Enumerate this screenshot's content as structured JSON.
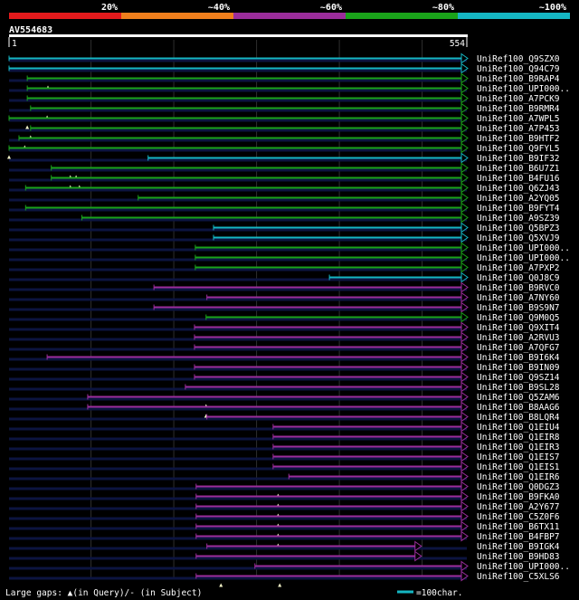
{
  "chart_data": {
    "type": "blast-alignment-overview",
    "query_id": "AV554683",
    "query_start": 1,
    "query_end": 554,
    "identity_scale": [
      {
        "label": "20%",
        "color": "#e41a1c"
      },
      {
        "label": "~40%",
        "color": "#f07f1c"
      },
      {
        "label": "~60%",
        "color": "#9b2d9b"
      },
      {
        "label": "~80%",
        "color": "#1aa31a"
      },
      {
        "label": "~100%",
        "color": "#15b6c2"
      }
    ],
    "hits": [
      {
        "name": "UniRef100_Q9SZX0",
        "start": 1,
        "end": 554,
        "color": "#15b6c2",
        "gaps": []
      },
      {
        "name": "UniRef100_Q94C79",
        "start": 1,
        "end": 554,
        "color": "#15b6c2",
        "gaps": []
      },
      {
        "name": "UniRef100_B9RAP4",
        "start": 23,
        "end": 554,
        "color": "#1aa31a",
        "gaps": [
          48
        ]
      },
      {
        "name": "UniRef100_UPI000..",
        "start": 23,
        "end": 554,
        "color": "#1aa31a",
        "gaps": []
      },
      {
        "name": "UniRef100_A7PCK9",
        "start": 23,
        "end": 554,
        "color": "#1aa31a",
        "gaps": []
      },
      {
        "name": "UniRef100_B9RMR4",
        "start": 27,
        "end": 554,
        "color": "#1aa31a",
        "gaps": [
          47
        ]
      },
      {
        "name": "UniRef100_A7WPL5",
        "start": 1,
        "end": 554,
        "color": "#1aa31a",
        "gaps": [
          23
        ]
      },
      {
        "name": "UniRef100_A7P453",
        "start": 27,
        "end": 554,
        "color": "#1aa31a",
        "gaps": [
          27
        ]
      },
      {
        "name": "UniRef100_B9HTF2",
        "start": 13,
        "end": 554,
        "color": "#1aa31a",
        "gaps": [
          20
        ]
      },
      {
        "name": "UniRef100_Q9FYL5",
        "start": 1,
        "end": 554,
        "color": "#1aa31a",
        "gaps": [
          1
        ]
      },
      {
        "name": "UniRef100_B9IF32",
        "start": 169,
        "end": 554,
        "color": "#15b6c2",
        "gaps": []
      },
      {
        "name": "UniRef100_B6U7Z1",
        "start": 52,
        "end": 554,
        "color": "#1aa31a",
        "gaps": [
          75,
          82
        ]
      },
      {
        "name": "UniRef100_B4FU16",
        "start": 52,
        "end": 554,
        "color": "#1aa31a",
        "gaps": [
          75,
          86
        ]
      },
      {
        "name": "UniRef100_Q6ZJ43",
        "start": 21,
        "end": 554,
        "color": "#1aa31a",
        "gaps": []
      },
      {
        "name": "UniRef100_A2YQ05",
        "start": 157,
        "end": 554,
        "color": "#1aa31a",
        "gaps": []
      },
      {
        "name": "UniRef100_B9FYT4",
        "start": 21,
        "end": 554,
        "color": "#1aa31a",
        "gaps": []
      },
      {
        "name": "UniRef100_A9SZ39",
        "start": 89,
        "end": 554,
        "color": "#1aa31a",
        "gaps": []
      },
      {
        "name": "UniRef100_Q5BPZ3",
        "start": 248,
        "end": 554,
        "color": "#15b6c2",
        "gaps": []
      },
      {
        "name": "UniRef100_Q5XVJ9",
        "start": 248,
        "end": 554,
        "color": "#15b6c2",
        "gaps": []
      },
      {
        "name": "UniRef100_UPI000..",
        "start": 226,
        "end": 554,
        "color": "#1aa31a",
        "gaps": []
      },
      {
        "name": "UniRef100_UPI000..",
        "start": 226,
        "end": 554,
        "color": "#1aa31a",
        "gaps": []
      },
      {
        "name": "UniRef100_A7PXP2",
        "start": 226,
        "end": 554,
        "color": "#1aa31a",
        "gaps": []
      },
      {
        "name": "UniRef100_Q0J8C9",
        "start": 388,
        "end": 554,
        "color": "#15b6c2",
        "gaps": []
      },
      {
        "name": "UniRef100_B9RVC0",
        "start": 176,
        "end": 554,
        "color": "#9b2d9b",
        "gaps": []
      },
      {
        "name": "UniRef100_A7NY60",
        "start": 240,
        "end": 554,
        "color": "#9b2d9b",
        "gaps": []
      },
      {
        "name": "UniRef100_B9S9N7",
        "start": 176,
        "end": 554,
        "color": "#9b2d9b",
        "gaps": []
      },
      {
        "name": "UniRef100_Q9M0Q5",
        "start": 239,
        "end": 554,
        "color": "#1aa31a",
        "gaps": []
      },
      {
        "name": "UniRef100_Q9XIT4",
        "start": 225,
        "end": 554,
        "color": "#9b2d9b",
        "gaps": []
      },
      {
        "name": "UniRef100_A2RVU3",
        "start": 225,
        "end": 554,
        "color": "#9b2d9b",
        "gaps": []
      },
      {
        "name": "UniRef100_A7QFG7",
        "start": 225,
        "end": 554,
        "color": "#9b2d9b",
        "gaps": []
      },
      {
        "name": "UniRef100_B9I6K4",
        "start": 47,
        "end": 554,
        "color": "#9b2d9b",
        "gaps": []
      },
      {
        "name": "UniRef100_B9IN09",
        "start": 225,
        "end": 554,
        "color": "#9b2d9b",
        "gaps": []
      },
      {
        "name": "UniRef100_Q9SZ14",
        "start": 225,
        "end": 554,
        "color": "#9b2d9b",
        "gaps": []
      },
      {
        "name": "UniRef100_B9SL28",
        "start": 214,
        "end": 554,
        "color": "#9b2d9b",
        "gaps": []
      },
      {
        "name": "UniRef100_Q5ZAM6",
        "start": 96,
        "end": 554,
        "color": "#9b2d9b",
        "gaps": [
          239
        ]
      },
      {
        "name": "UniRef100_B8AAG6",
        "start": 96,
        "end": 554,
        "color": "#9b2d9b",
        "gaps": [
          239
        ]
      },
      {
        "name": "UniRef100_B8LQR4",
        "start": 240,
        "end": 554,
        "color": "#9b2d9b",
        "gaps": []
      },
      {
        "name": "UniRef100_Q1EIU4",
        "start": 320,
        "end": 554,
        "color": "#9b2d9b",
        "gaps": []
      },
      {
        "name": "UniRef100_Q1EIR8",
        "start": 320,
        "end": 554,
        "color": "#9b2d9b",
        "gaps": []
      },
      {
        "name": "UniRef100_Q1EIR3",
        "start": 320,
        "end": 554,
        "color": "#9b2d9b",
        "gaps": []
      },
      {
        "name": "UniRef100_Q1EIS7",
        "start": 320,
        "end": 554,
        "color": "#9b2d9b",
        "gaps": []
      },
      {
        "name": "UniRef100_Q1EIS1",
        "start": 320,
        "end": 554,
        "color": "#9b2d9b",
        "gaps": []
      },
      {
        "name": "UniRef100_Q1EIR6",
        "start": 339,
        "end": 554,
        "color": "#9b2d9b",
        "gaps": []
      },
      {
        "name": "UniRef100_Q0DGZ3",
        "start": 227,
        "end": 554,
        "color": "#9b2d9b",
        "gaps": [
          326
        ]
      },
      {
        "name": "UniRef100_B9FKA0",
        "start": 227,
        "end": 554,
        "color": "#9b2d9b",
        "gaps": [
          326
        ]
      },
      {
        "name": "UniRef100_A2Y677",
        "start": 227,
        "end": 554,
        "color": "#9b2d9b",
        "gaps": [
          326
        ]
      },
      {
        "name": "UniRef100_C5Z0F6",
        "start": 227,
        "end": 554,
        "color": "#9b2d9b",
        "gaps": [
          326
        ]
      },
      {
        "name": "UniRef100_B6TX11",
        "start": 227,
        "end": 554,
        "color": "#9b2d9b",
        "gaps": [
          326
        ]
      },
      {
        "name": "UniRef100_B4FBP7",
        "start": 227,
        "end": 554,
        "color": "#9b2d9b",
        "gaps": [
          326
        ]
      },
      {
        "name": "UniRef100_B9IGK4",
        "start": 240,
        "end": 498,
        "color": "#9b2d9b",
        "gaps": []
      },
      {
        "name": "UniRef100_B9HD83",
        "start": 227,
        "end": 498,
        "color": "#9b2d9b",
        "gaps": []
      },
      {
        "name": "UniRef100_UPI000..",
        "start": 298,
        "end": 554,
        "color": "#9b2d9b",
        "gaps": []
      },
      {
        "name": "UniRef100_C5XLS6",
        "start": 227,
        "end": 554,
        "color": "#9b2d9b",
        "gaps": [
          257,
          328
        ]
      }
    ],
    "footer_note": "Large gaps: ▲(in Query)/- (in Subject)",
    "scale_note": "=100char."
  }
}
